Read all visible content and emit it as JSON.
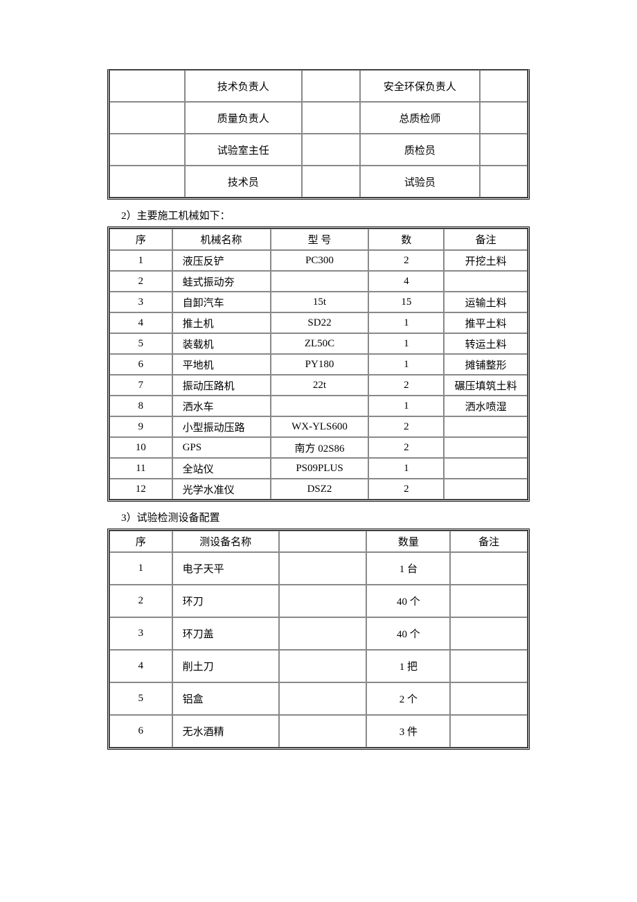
{
  "roles_table": {
    "rows": [
      {
        "c2": "技术负责人",
        "c4": "安全环保负责人"
      },
      {
        "c2": "质量负责人",
        "c4": "总质检师"
      },
      {
        "c2": "试验室主任",
        "c4": "质检员"
      },
      {
        "c2": "技术员",
        "c4": "试验员"
      }
    ],
    "col_widths": [
      "18%",
      "28%",
      "14%",
      "28.5%",
      "11.5%"
    ]
  },
  "section2_label": "2）主要施工机械如下：",
  "machinery_table": {
    "headers": [
      "序",
      "机械名称",
      "型   号",
      "数",
      "备注"
    ],
    "col_widths": [
      "15%",
      "23.5%",
      "23.5%",
      "18%",
      "20%"
    ],
    "rows": [
      {
        "seq": "1",
        "name": "液压反铲",
        "model": "PC300",
        "qty": "2",
        "remark": "开挖土料"
      },
      {
        "seq": "2",
        "name": "蛙式振动夯",
        "model": "",
        "qty": "4",
        "remark": ""
      },
      {
        "seq": "3",
        "name": "自卸汽车",
        "model": "15t",
        "qty": "15",
        "remark": "运输土料"
      },
      {
        "seq": "4",
        "name": "推土机",
        "model": "SD22",
        "qty": "1",
        "remark": "推平土料"
      },
      {
        "seq": "5",
        "name": "装载机",
        "model": "ZL50C",
        "qty": "1",
        "remark": "转运土料"
      },
      {
        "seq": "6",
        "name": "平地机",
        "model": "PY180",
        "qty": "1",
        "remark": "摊铺整形"
      },
      {
        "seq": "7",
        "name": "振动压路机",
        "model": "22t",
        "qty": "2",
        "remark": "碾压填筑土料"
      },
      {
        "seq": "8",
        "name": "洒水车",
        "model": "",
        "qty": "1",
        "remark": "洒水喷湿"
      },
      {
        "seq": "9",
        "name": "小型振动压路",
        "model": "WX-YLS600",
        "qty": "2",
        "remark": ""
      },
      {
        "seq": "10",
        "name": "GPS",
        "model": "南方 02S86",
        "qty": "2",
        "remark": ""
      },
      {
        "seq": "11",
        "name": "全站仪",
        "model": "PS09PLUS",
        "qty": "1",
        "remark": ""
      },
      {
        "seq": "12",
        "name": "光学水准仪",
        "model": "DSZ2",
        "qty": "2",
        "remark": ""
      }
    ]
  },
  "section3_label": "3）试验检测设备配置",
  "equipment_table": {
    "headers": [
      "序",
      "测设备名称",
      "",
      "数量",
      "备注"
    ],
    "col_widths": [
      "15%",
      "25.5%",
      "21%",
      "20%",
      "18.5%"
    ],
    "rows": [
      {
        "seq": "1",
        "name": "电子天平",
        "blank": "",
        "qty": "1 台",
        "remark": ""
      },
      {
        "seq": "2",
        "name": "环刀",
        "blank": "",
        "qty": "40 个",
        "remark": ""
      },
      {
        "seq": "3",
        "name": "环刀盖",
        "blank": "",
        "qty": "40 个",
        "remark": ""
      },
      {
        "seq": "4",
        "name": "削土刀",
        "blank": "",
        "qty": "1 把",
        "remark": ""
      },
      {
        "seq": "5",
        "name": "铝盒",
        "blank": "",
        "qty": "2 个",
        "remark": ""
      },
      {
        "seq": "6",
        "name": "无水酒精",
        "blank": "",
        "qty": "3 件",
        "remark": ""
      }
    ]
  }
}
